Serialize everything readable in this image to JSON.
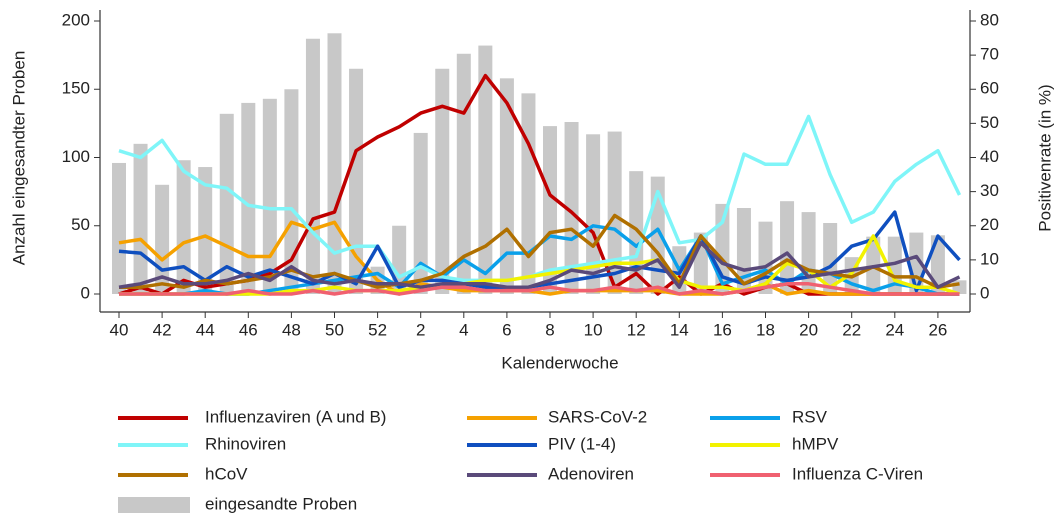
{
  "chart_data": {
    "type": "bar-line",
    "x_label": "Kalenderwoche",
    "y_label": "Anzahl eingesandter Proben",
    "y2_label": "Positivenrate (in %)",
    "categories": [
      "40",
      null,
      "42",
      null,
      "44",
      null,
      "46",
      null,
      "48",
      null,
      "50",
      null,
      "52",
      null,
      "2",
      null,
      "4",
      null,
      "6",
      null,
      "8",
      null,
      "10",
      null,
      "12",
      null,
      "14",
      null,
      "16",
      null,
      "18",
      null,
      "20",
      null,
      "22",
      null,
      "24",
      null,
      "26",
      null
    ],
    "ylim": [
      0,
      200
    ],
    "yticks": [
      0,
      50,
      100,
      150,
      200
    ],
    "y2lim": [
      0,
      80
    ],
    "y2ticks": [
      0,
      10,
      20,
      30,
      40,
      50,
      60,
      70,
      80
    ],
    "series": [
      {
        "name": "Influenzaviren (A und B)",
        "color": "#c00000",
        "axis": "y2",
        "values": [
          0,
          2,
          0,
          4,
          2,
          3,
          4,
          6,
          10,
          22,
          24,
          42,
          46,
          49,
          53,
          55,
          53,
          64,
          56,
          44,
          29,
          24,
          18,
          2,
          6,
          0,
          5,
          0,
          3,
          0,
          2,
          3,
          0,
          0,
          0,
          0,
          0,
          0,
          0,
          0
        ]
      },
      {
        "name": "SARS-CoV-2",
        "color": "#f5a100",
        "axis": "y2",
        "values": [
          15,
          16,
          10,
          15,
          17,
          14,
          11,
          11,
          21,
          19,
          21,
          11,
          4,
          0,
          3,
          2,
          1,
          1,
          1,
          1,
          0,
          1,
          1,
          1,
          1,
          1,
          0,
          0,
          0,
          1,
          3,
          0,
          1,
          0,
          0,
          0,
          0,
          0,
          0,
          0
        ]
      },
      {
        "name": "RSV",
        "color": "#0aa0ea",
        "axis": "y2",
        "values": [
          0,
          0,
          0,
          0,
          1,
          0,
          0,
          1,
          2,
          3,
          4,
          5,
          6,
          2,
          9,
          5,
          10,
          6,
          12,
          12,
          17,
          16,
          20,
          19,
          14,
          19,
          7,
          17,
          3,
          5,
          7,
          3,
          7,
          6,
          3,
          1,
          3,
          2,
          0,
          0
        ]
      },
      {
        "name": "Rhinoviren",
        "color": "#7ff5f8",
        "axis": "y2",
        "values": [
          42,
          40,
          45,
          36,
          32,
          31,
          26,
          25,
          25,
          18,
          12,
          14,
          14,
          5,
          8,
          5,
          4,
          4,
          4,
          5,
          7,
          8,
          9,
          10,
          11,
          30,
          15,
          16,
          21,
          41,
          38,
          38,
          52,
          35,
          21,
          24,
          33,
          38,
          42,
          29
        ]
      },
      {
        "name": "PIV (1-4)",
        "color": "#0f4fbf",
        "axis": "y2",
        "values": [
          12.5,
          12,
          7,
          8,
          4,
          8,
          5,
          7,
          5,
          3,
          6,
          3,
          14,
          2,
          4,
          4,
          3,
          2,
          2,
          2,
          3,
          4,
          5,
          6,
          8,
          7,
          6,
          17,
          5,
          3,
          5,
          4,
          5,
          8,
          14,
          16,
          24,
          1,
          17,
          10
        ]
      },
      {
        "name": "hMPV",
        "color": "#f2f200",
        "axis": "y2",
        "values": [
          0,
          0,
          0,
          0,
          0,
          0,
          0,
          0,
          1,
          1,
          2,
          1,
          1,
          1,
          2,
          2,
          3,
          4,
          4,
          5,
          6,
          7,
          8,
          9,
          9,
          10,
          4,
          2,
          2,
          1,
          3,
          9,
          7,
          2,
          6,
          17,
          4,
          2,
          2,
          0
        ]
      },
      {
        "name": "hCoV",
        "color": "#b07000",
        "axis": "y2",
        "values": [
          2,
          2,
          3,
          2,
          4,
          3,
          4,
          5,
          7,
          5,
          6,
          4,
          2,
          3,
          4,
          6,
          11,
          14,
          19,
          11,
          18,
          19,
          14,
          23,
          19,
          12,
          3,
          17,
          10,
          3,
          6,
          10,
          7,
          6,
          5,
          8,
          5,
          5,
          2,
          3
        ]
      },
      {
        "name": "Adenoviren",
        "color": "#5a4a7a",
        "axis": "y2",
        "values": [
          2,
          3,
          5,
          3,
          3,
          4,
          6,
          4,
          8,
          4,
          3,
          4,
          3,
          3,
          2,
          3,
          3,
          3,
          2,
          2,
          4,
          7,
          6,
          8,
          7,
          10,
          2,
          15,
          9,
          7,
          8,
          12,
          5,
          6,
          7,
          8,
          9,
          11,
          2,
          5
        ]
      },
      {
        "name": "Influenza C-Viren",
        "color": "#f06070",
        "axis": "y2",
        "values": [
          0,
          0,
          0,
          0,
          0,
          0,
          1,
          0,
          0,
          1,
          0,
          1,
          1,
          0,
          1,
          2,
          2,
          1,
          1,
          1,
          2,
          1,
          1,
          2,
          1,
          2,
          0,
          1,
          0,
          1,
          2,
          3,
          3,
          2,
          1,
          0,
          0,
          0,
          0,
          0
        ]
      },
      {
        "name": "eingesandte Proben",
        "color": "#c8c8c8",
        "type": "bar",
        "values": [
          96,
          110,
          80,
          98,
          93,
          132,
          140,
          143,
          150,
          187,
          191,
          165,
          20,
          50,
          118,
          165,
          176,
          182,
          158,
          147,
          123,
          126,
          117,
          119,
          90,
          86,
          35,
          45,
          66,
          63,
          53,
          68,
          60,
          52,
          27,
          42,
          42,
          45,
          43,
          10
        ]
      }
    ]
  }
}
